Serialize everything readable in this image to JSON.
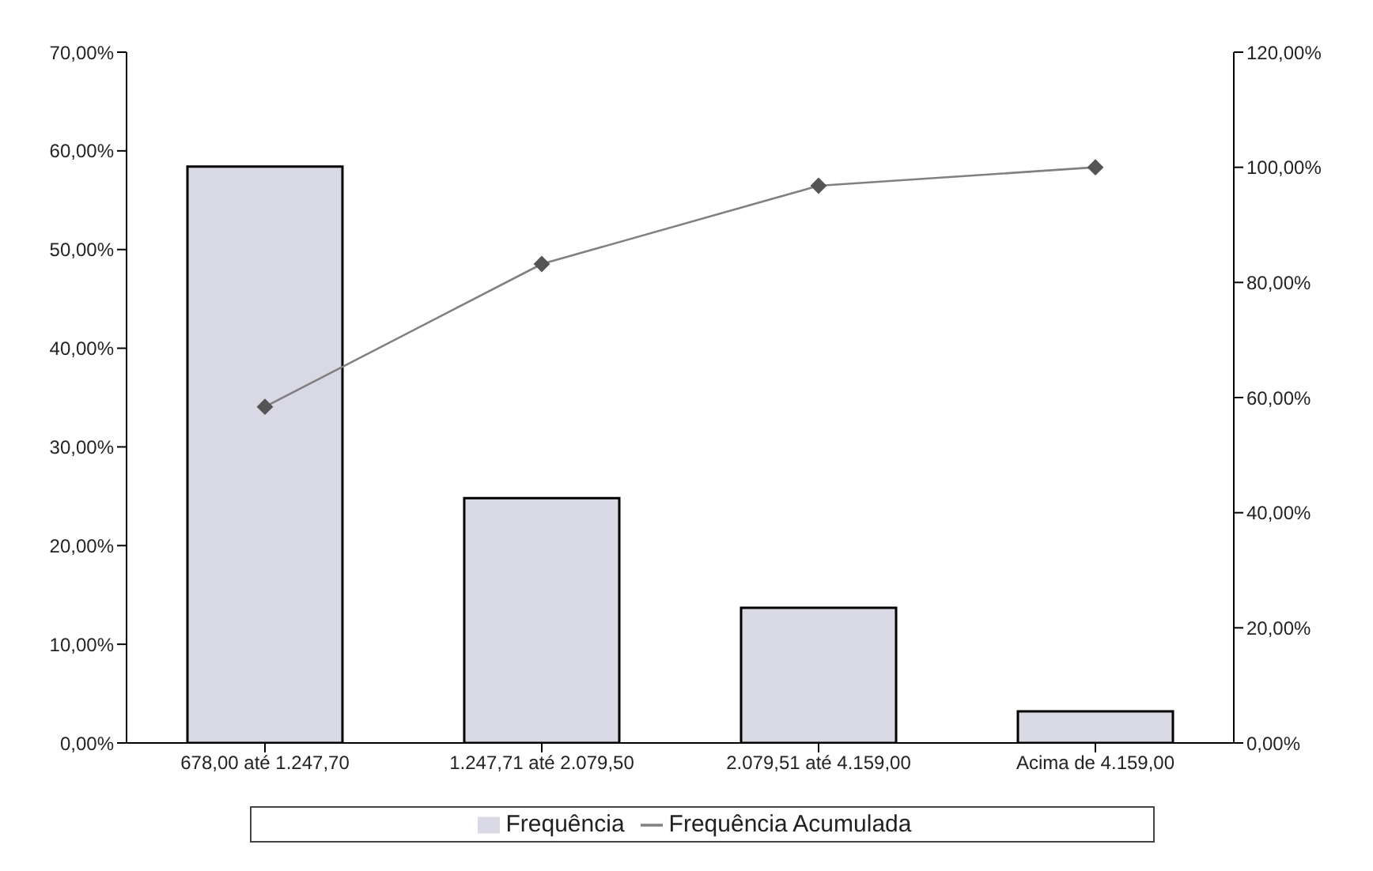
{
  "chart_data": {
    "type": "bar",
    "categories": [
      "678,00 até 1.247,70",
      "1.247,71 até 2.079,50",
      "2.079,51 até 4.159,00",
      "Acima de 4.159,00"
    ],
    "series": [
      {
        "name": "Frequência",
        "color": "#d9d9e6",
        "values": [
          58.4,
          24.8,
          13.7,
          3.2
        ]
      },
      {
        "name": "Frequência Acumulada",
        "type": "line",
        "axis": "y2",
        "color": "#808080",
        "marker": "diamond",
        "values": [
          58.4,
          83.2,
          96.8,
          100
        ]
      }
    ],
    "ylim": [
      0,
      70
    ],
    "yticks": [
      {
        "value": 0,
        "label": "0,00%"
      },
      {
        "value": 10,
        "label": "10,00%"
      },
      {
        "value": 20,
        "label": "20,00%"
      },
      {
        "value": 30,
        "label": "30,00%"
      },
      {
        "value": 40,
        "label": "40,00%"
      },
      {
        "value": 50,
        "label": "50,00%"
      },
      {
        "value": 60,
        "label": "60,00%"
      },
      {
        "value": 70,
        "label": "70,00%"
      }
    ],
    "y2lim": [
      0,
      120
    ],
    "y2ticks": [
      {
        "value": 0,
        "label": "0,00%"
      },
      {
        "value": 20,
        "label": "20,00%"
      },
      {
        "value": 40,
        "label": "40,00%"
      },
      {
        "value": 60,
        "label": "60,00%"
      },
      {
        "value": 80,
        "label": "80,00%"
      },
      {
        "value": 100,
        "label": "100,00%"
      },
      {
        "value": 120,
        "label": "120,00%"
      }
    ],
    "grid": false,
    "legend": "bottom"
  }
}
